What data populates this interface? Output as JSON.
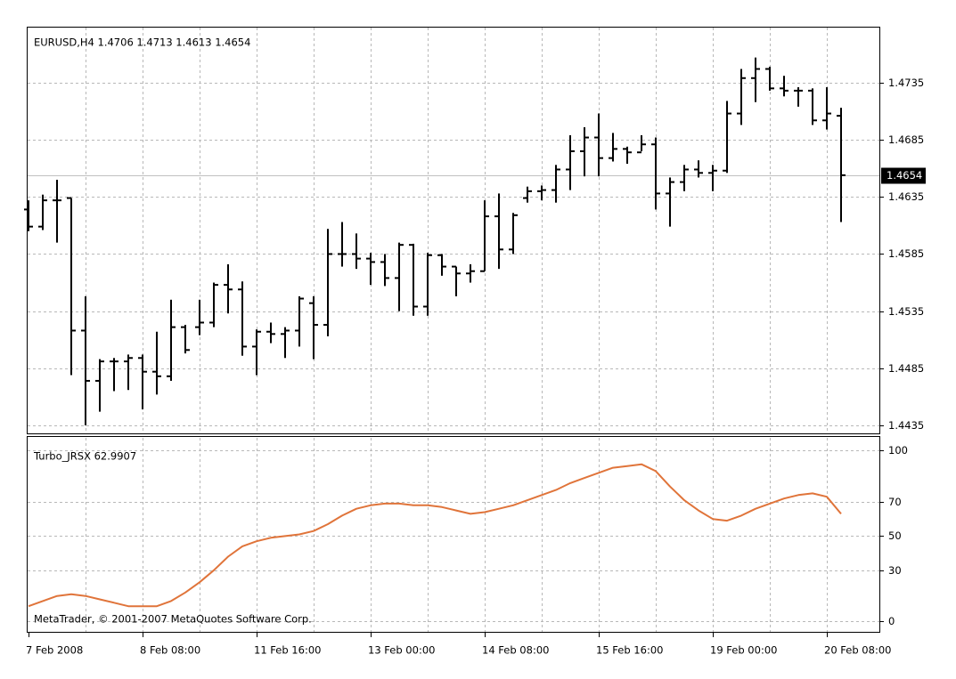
{
  "chart_data": [
    {
      "type": "ohlc",
      "title": "EURUSD,H4  1.4706 1.4713 1.4613 1.4654",
      "open": [
        1.4624,
        1.4609,
        1.4632,
        1.4634,
        1.4518,
        1.4474,
        1.4491,
        1.4491,
        1.4494,
        1.4482,
        1.4478,
        1.4521,
        1.4521,
        1.4525,
        1.4558,
        1.4554,
        1.4504,
        1.4517,
        1.4515,
        1.4518,
        1.4542,
        1.4523,
        1.4585,
        1.4585,
        1.4581,
        1.4578,
        1.4564,
        1.4593,
        1.4539,
        1.4584,
        1.4574,
        1.4568,
        1.457,
        1.4618,
        1.4589,
        1.4634,
        1.464,
        1.4641,
        1.4659,
        1.4675,
        1.4687,
        1.4669,
        1.4677,
        1.4674,
        1.4681,
        1.4638,
        1.4648,
        1.4659,
        1.4656,
        1.4658,
        1.4708,
        1.4739,
        1.4747,
        1.473,
        1.4728,
        1.4728,
        1.4702,
        1.4706
      ],
      "high": [
        1.4632,
        1.4637,
        1.465,
        1.4634,
        1.4548,
        1.4493,
        1.4494,
        1.4497,
        1.4497,
        1.4517,
        1.4545,
        1.4523,
        1.4545,
        1.456,
        1.4576,
        1.4561,
        1.4519,
        1.4525,
        1.4521,
        1.4548,
        1.4548,
        1.4607,
        1.4613,
        1.4603,
        1.4586,
        1.4585,
        1.4595,
        1.4594,
        1.4586,
        1.4585,
        1.4574,
        1.4576,
        1.4632,
        1.4638,
        1.4621,
        1.4644,
        1.4645,
        1.4663,
        1.4689,
        1.4696,
        1.4708,
        1.4691,
        1.4679,
        1.4689,
        1.4687,
        1.4652,
        1.4663,
        1.4667,
        1.4663,
        1.4719,
        1.4747,
        1.4757,
        1.4749,
        1.4741,
        1.4731,
        1.473,
        1.4731,
        1.4713
      ],
      "low": [
        1.4605,
        1.4606,
        1.4595,
        1.4479,
        1.4435,
        1.4447,
        1.4465,
        1.4466,
        1.4449,
        1.4462,
        1.4474,
        1.4498,
        1.4514,
        1.4521,
        1.4533,
        1.4496,
        1.4479,
        1.4507,
        1.4494,
        1.4504,
        1.4493,
        1.4513,
        1.4574,
        1.4572,
        1.4558,
        1.4557,
        1.4535,
        1.4531,
        1.4531,
        1.4566,
        1.4548,
        1.456,
        1.457,
        1.4572,
        1.4585,
        1.463,
        1.4632,
        1.463,
        1.4641,
        1.4653,
        1.4653,
        1.4666,
        1.4664,
        1.4675,
        1.4624,
        1.4609,
        1.464,
        1.4652,
        1.464,
        1.4656,
        1.4698,
        1.4718,
        1.4728,
        1.4723,
        1.4714,
        1.4698,
        1.4694,
        1.4613
      ],
      "close": [
        1.4609,
        1.4632,
        1.4632,
        1.4518,
        1.4474,
        1.4491,
        1.4491,
        1.4494,
        1.4482,
        1.4478,
        1.4521,
        1.4501,
        1.4525,
        1.4558,
        1.4554,
        1.4504,
        1.4517,
        1.4515,
        1.4518,
        1.4546,
        1.4523,
        1.4585,
        1.4585,
        1.4581,
        1.4578,
        1.4564,
        1.4593,
        1.4539,
        1.4584,
        1.4574,
        1.4568,
        1.457,
        1.4618,
        1.4589,
        1.4619,
        1.464,
        1.4641,
        1.4659,
        1.4675,
        1.4687,
        1.4669,
        1.4677,
        1.4674,
        1.4681,
        1.4638,
        1.4648,
        1.4659,
        1.4656,
        1.4658,
        1.4708,
        1.4739,
        1.4747,
        1.473,
        1.4728,
        1.4728,
        1.4702,
        1.4708,
        1.4654
      ],
      "color": "#000000",
      "current_price": 1.4654,
      "ylim": [
        1.4428,
        1.4784
      ],
      "yticks": [
        1.4435,
        1.4485,
        1.4535,
        1.4585,
        1.4635,
        1.4685,
        1.4735
      ],
      "grid": true
    },
    {
      "type": "line",
      "title": "Turbo_JRSX 62.9907",
      "annotation": "MetaTrader, © 2001-2007 MetaQuotes Software Corp.",
      "categories": [
        "7 Feb 2008",
        null,
        null,
        null,
        null,
        null,
        null,
        null,
        "8 Feb 08:00",
        null,
        null,
        null,
        null,
        null,
        null,
        null,
        "11 Feb 16:00",
        null,
        null,
        null,
        null,
        null,
        null,
        null,
        "13 Feb 00:00",
        null,
        null,
        null,
        null,
        null,
        null,
        null,
        "14 Feb 08:00",
        null,
        null,
        null,
        null,
        null,
        null,
        null,
        "15 Feb 16:00",
        null,
        null,
        null,
        null,
        null,
        null,
        null,
        "19 Feb 00:00",
        null,
        null,
        null,
        null,
        null,
        null,
        null,
        "20 Feb 08:00",
        null
      ],
      "series": [
        {
          "color": "#e0743a",
          "values": [
            9,
            12,
            15,
            16,
            15,
            13,
            11,
            9,
            9,
            9,
            12,
            17,
            23,
            30,
            38,
            44,
            47,
            49,
            50,
            51,
            53,
            57,
            62,
            66,
            68,
            69,
            69,
            68,
            68,
            67,
            65,
            63,
            64,
            66,
            68,
            71,
            74,
            77,
            81,
            84,
            87,
            90,
            91,
            92,
            88,
            79,
            71,
            65,
            60,
            59,
            62,
            66,
            69,
            72,
            74,
            75,
            73,
            63
          ]
        }
      ],
      "ylim": [
        -6,
        108
      ],
      "yticks": [
        0,
        30,
        50,
        70,
        100
      ],
      "grid": true
    }
  ]
}
